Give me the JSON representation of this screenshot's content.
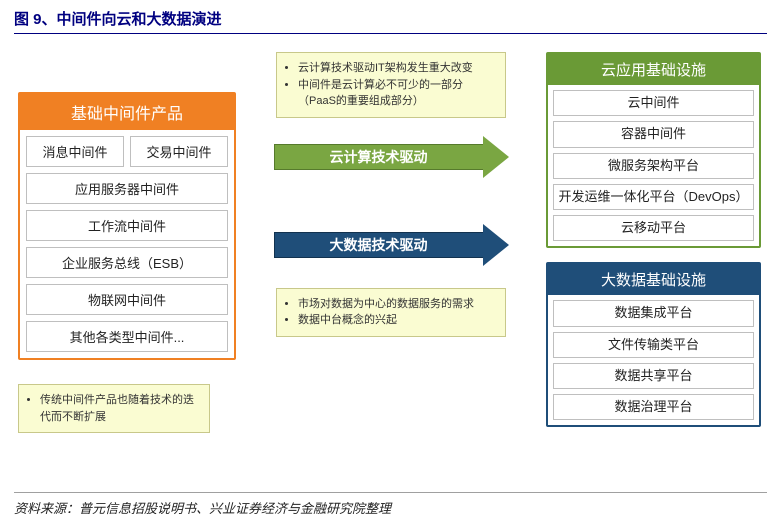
{
  "figure_title": "图 9、中间件向云和大数据演进",
  "left_box": {
    "header": "基础中间件产品",
    "row1_a": "消息中间件",
    "row1_b": "交易中间件",
    "items": [
      "应用服务器中间件",
      "工作流中间件",
      "企业服务总线（ESB）",
      "物联网中间件",
      "其他各类型中间件..."
    ]
  },
  "note_left": "传统中间件产品也随着技术的迭代而不断扩展",
  "mid": {
    "note_top_1": "云计算技术驱动IT架构发生重大改变",
    "note_top_2": "中间件是云计算必不可少的一部分（PaaS的重要组成部分）",
    "arrow_green": "云计算技术驱动",
    "arrow_blue": "大数据技术驱动",
    "note_bottom_1": "市场对数据为中心的数据服务的需求",
    "note_bottom_2": "数据中台概念的兴起"
  },
  "right_green": {
    "header": "云应用基础设施",
    "items": [
      "云中间件",
      "容器中间件",
      "微服务架构平台",
      "开发运维一体化平台（DevOps）",
      "云移动平台"
    ]
  },
  "right_blue": {
    "header": "大数据基础设施",
    "items": [
      "数据集成平台",
      "文件传输类平台",
      "数据共享平台",
      "数据治理平台"
    ]
  },
  "source": "资料来源：普元信息招股说明书、兴业证券经济与金融研究院整理",
  "colors": {
    "title_color": "#000080",
    "orange": "#f08023",
    "green": "#6a9a36",
    "arrow_green": "#7aa642",
    "blue": "#1f4e79",
    "note_bg": "#fafcd2",
    "item_border": "#bfbfbf"
  }
}
